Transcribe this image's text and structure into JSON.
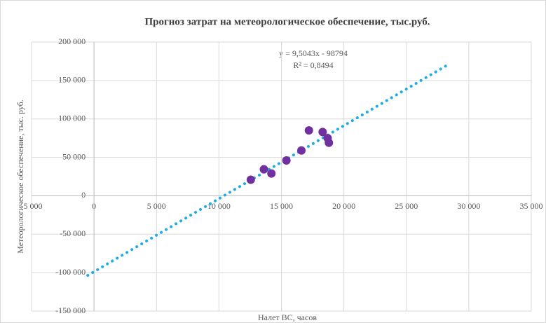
{
  "chart_data": {
    "type": "scatter",
    "title": "Прогноз затрат на метеорологическое обеспечение, тыс.руб.",
    "x_label": "Налет ВС, часов",
    "y_label": "Метеорологическое обеспечение, тыс. руб.",
    "series": [
      {
        "name": "Метеорологическое обеспечение",
        "color": "#7030a0",
        "x": [
          12550,
          13600,
          14200,
          15400,
          16600,
          17200,
          18300,
          18700,
          18800
        ],
        "values": [
          20900,
          34500,
          29000,
          46000,
          59000,
          85000,
          83000,
          75000,
          69000
        ]
      }
    ],
    "trendline": {
      "slope": 9.5043,
      "intercept": -98794,
      "x_range": [
        -500,
        28500
      ],
      "color": "#1cade4",
      "equation_label": "y = 9,5043x - 98794",
      "r2_label": "R² = 0,8494"
    },
    "xlim": [
      -5000,
      35000
    ],
    "xticks": [
      {
        "value": -5000,
        "label": "-5 000"
      },
      0,
      {
        "value": 5000,
        "label": "5 000"
      },
      {
        "value": 10000,
        "label": "10 000"
      },
      {
        "value": 15000,
        "label": "15 000"
      },
      {
        "value": 20000,
        "label": "20 000"
      },
      {
        "value": 25000,
        "label": "25 000"
      },
      {
        "value": 30000,
        "label": "30 000"
      },
      {
        "value": 35000,
        "label": "35 000"
      }
    ],
    "ylim": [
      -150000,
      200000
    ],
    "yticks": [
      {
        "value": -150000,
        "label": "-150 000"
      },
      {
        "value": -100000,
        "label": "-100 000"
      },
      {
        "value": -50000,
        "label": "-50 000"
      },
      0,
      {
        "value": 50000,
        "label": "50 000"
      },
      {
        "value": 100000,
        "label": "100 000"
      },
      {
        "value": 150000,
        "label": "150 000"
      },
      {
        "value": 200000,
        "label": "200 000"
      }
    ],
    "grid": true
  }
}
